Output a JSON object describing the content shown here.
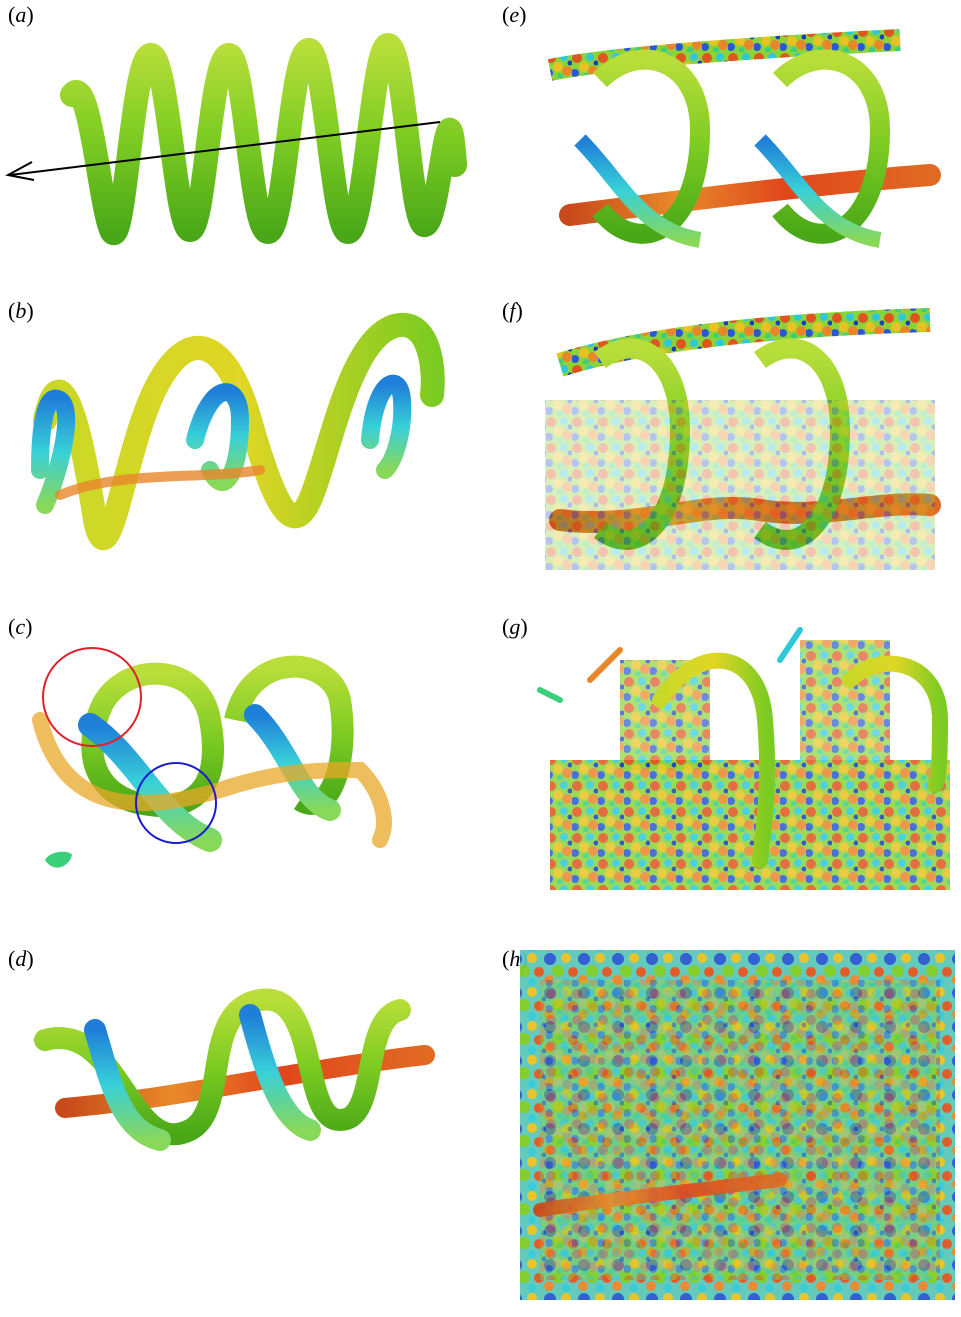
{
  "figure": {
    "panels": [
      {
        "id": "a",
        "open": "(",
        "letter": "a",
        "close": ")"
      },
      {
        "id": "b",
        "open": "(",
        "letter": "b",
        "close": ")"
      },
      {
        "id": "c",
        "open": "(",
        "letter": "c",
        "close": ")"
      },
      {
        "id": "d",
        "open": "(",
        "letter": "d",
        "close": ")"
      },
      {
        "id": "e",
        "open": "(",
        "letter": "e",
        "close": ")"
      },
      {
        "id": "f",
        "open": "(",
        "letter": "f",
        "close": ")"
      },
      {
        "id": "g",
        "open": "(",
        "letter": "g",
        "close": ")"
      },
      {
        "id": "h",
        "open": "(",
        "letter": "h",
        "close": ")"
      }
    ],
    "annotations": {
      "panel_c_circles": [
        {
          "color": "#e0202a"
        },
        {
          "color": "#1a1ad0"
        }
      ],
      "panel_a_arrow_color": "#000000"
    },
    "colors": {
      "green": "#6cc51e",
      "yellow": "#d6dc22",
      "orange": "#e8862a",
      "red": "#d9401e",
      "cyan": "#2ec8d8",
      "blue": "#2a58d0"
    }
  }
}
